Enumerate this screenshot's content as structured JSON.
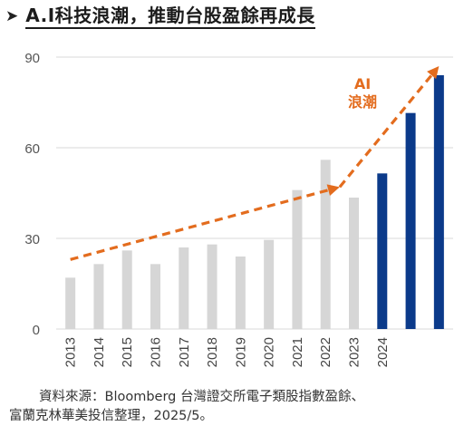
{
  "header": {
    "bullet_icon": "arrow-bullet-icon",
    "title": "A.I科技浪潮，推動台股盈餘再成長"
  },
  "chart_data": {
    "type": "bar",
    "categories": [
      "2013",
      "2014",
      "2015",
      "2016",
      "2017",
      "2018",
      "2019",
      "2020",
      "2021",
      "2022",
      "2023",
      "2024",
      "",
      ""
    ],
    "values": [
      17,
      21.5,
      26,
      21.5,
      27,
      28,
      24,
      29.5,
      46,
      56,
      43.5,
      51.5,
      71.5,
      84
    ],
    "bar_colors": [
      "#d6d6d6",
      "#d6d6d6",
      "#d6d6d6",
      "#d6d6d6",
      "#d6d6d6",
      "#d6d6d6",
      "#d6d6d6",
      "#d6d6d6",
      "#d6d6d6",
      "#d6d6d6",
      "#d6d6d6",
      "#0b3a8a",
      "#0b3a8a",
      "#0b3a8a"
    ],
    "yticks": [
      0,
      30,
      60,
      90
    ],
    "ylim": [
      0,
      90
    ],
    "grid": true,
    "legend": "none",
    "annotation": {
      "lines": [
        "AI",
        "浪潮"
      ],
      "color": "#e36c1e"
    },
    "trend_arrows": [
      {
        "from": [
          0,
          23
        ],
        "to": [
          9.5,
          47
        ]
      },
      {
        "from": [
          9.5,
          47
        ],
        "to": [
          13,
          87
        ]
      }
    ]
  },
  "source": {
    "line1": "資料來源：Bloomberg 台灣證交所電子類股指數盈餘、",
    "line2": "富蘭克林華美投信整理，2025/5。"
  }
}
